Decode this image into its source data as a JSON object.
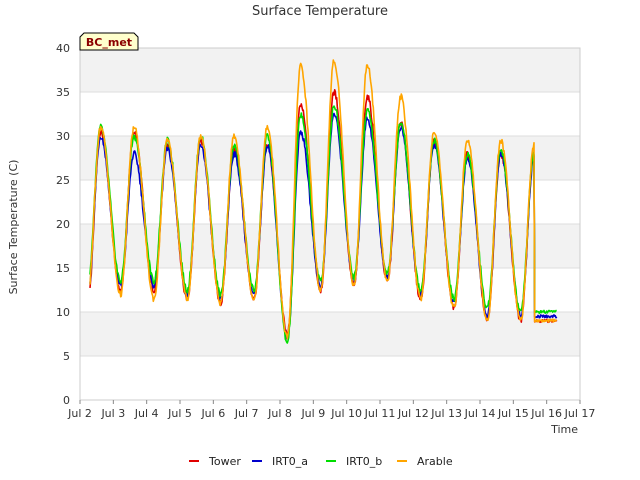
{
  "chart_data": {
    "type": "line",
    "title": "Surface Temperature",
    "site_label": "BC_met",
    "xlabel": "Time",
    "ylabel": "Surface Temperature (C)",
    "xlim": [
      2,
      17
    ],
    "ylim": [
      0,
      40
    ],
    "x_ticks": [
      2,
      3,
      4,
      5,
      6,
      7,
      8,
      9,
      10,
      11,
      12,
      13,
      14,
      15,
      16,
      17
    ],
    "x_tick_labels": [
      "Jul 2",
      "Jul 3",
      "Jul 4",
      "Jul 5",
      "Jul 6",
      "Jul 7",
      "Jul 8",
      "Jul 9",
      "Jul 10",
      "Jul 11",
      "Jul 12",
      "Jul 13",
      "Jul 14",
      "Jul 15",
      "Jul 16",
      "Jul 17"
    ],
    "y_ticks": [
      0,
      5,
      10,
      15,
      20,
      25,
      30,
      35,
      40
    ],
    "grid": "horizontal bands",
    "legend_position": "bottom",
    "x_unit": "day of July",
    "days": [
      2.3,
      3,
      4,
      5,
      6,
      7,
      8,
      9,
      10,
      11,
      12,
      13,
      14,
      15,
      16,
      16.3
    ],
    "series": [
      {
        "name": "Tower",
        "color": "#e00000",
        "daily_max": [
          30.5,
          30.5,
          29.0,
          29.5,
          28.5,
          29.0,
          33.5,
          35.0,
          34.5,
          31.5,
          29.5,
          28.0,
          28.0,
          28.0
        ],
        "daily_min": [
          10.5,
          12.5,
          12.5,
          11.5,
          11.0,
          11.5,
          7.5,
          12.5,
          13.0,
          13.5,
          11.5,
          10.5,
          9.0,
          9.0,
          9.0
        ]
      },
      {
        "name": "IRT0_a",
        "color": "#0000cc",
        "daily_max": [
          30.0,
          28.0,
          28.5,
          29.0,
          28.0,
          29.0,
          30.5,
          32.5,
          32.0,
          31.0,
          29.0,
          27.5,
          28.0,
          27.5
        ],
        "daily_min": [
          11.5,
          13.0,
          13.0,
          12.0,
          11.5,
          12.0,
          7.0,
          13.0,
          13.5,
          14.0,
          12.0,
          11.0,
          9.5,
          9.5,
          9.5
        ]
      },
      {
        "name": "IRT0_b",
        "color": "#00dd00",
        "daily_max": [
          31.0,
          30.0,
          29.5,
          30.0,
          29.0,
          30.0,
          32.5,
          33.5,
          33.0,
          31.5,
          29.5,
          28.0,
          28.5,
          28.0
        ],
        "daily_min": [
          12.5,
          13.5,
          13.5,
          12.5,
          12.0,
          12.5,
          6.5,
          13.5,
          14.0,
          14.5,
          12.5,
          11.5,
          10.5,
          10.0,
          10.0
        ]
      },
      {
        "name": "Arable",
        "color": "#ffa500",
        "daily_max": [
          31.0,
          31.0,
          29.5,
          30.0,
          30.0,
          31.0,
          38.0,
          38.5,
          38.0,
          34.5,
          30.5,
          29.5,
          29.5,
          29.0
        ],
        "daily_min": [
          11.5,
          12.0,
          11.5,
          11.5,
          11.0,
          11.5,
          7.0,
          12.5,
          13.0,
          13.5,
          11.5,
          10.5,
          9.0,
          9.0,
          9.0
        ]
      }
    ]
  }
}
